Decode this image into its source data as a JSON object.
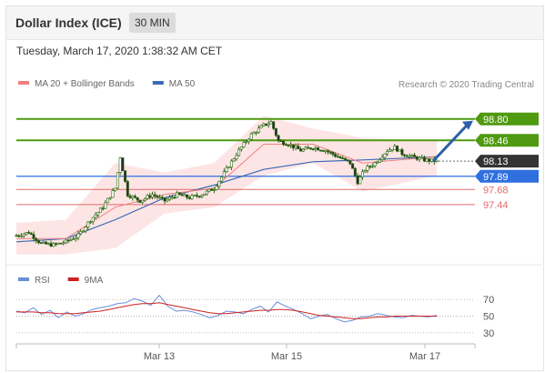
{
  "header": {
    "title": "Dollar Index (ICE)",
    "timeframe": "30 MIN"
  },
  "timestamp": "Tuesday, March 17, 2020 1:38:32 AM CET",
  "colors": {
    "ma20": "#f08080",
    "ma50": "#3a6ab4",
    "bollinger_fill": "#fde0e0",
    "support": "#e36b6b",
    "resistance": "#4f9a10",
    "pivot": "#2f6fe0",
    "current": "#333333",
    "rsi": "#6a8fd9",
    "rsi_ma": "#cc2222",
    "arrow": "#2d5fa8"
  },
  "chart_data": [
    {
      "type": "candlestick",
      "legend": [
        {
          "name": "MA 20 + Bollinger Bands",
          "color": "#f08080"
        },
        {
          "name": "MA 50",
          "color": "#3a6ab4"
        }
      ],
      "credit": "Research © 2020 Trading Central",
      "x_tick_labels": [
        "Mar 13",
        "Mar 15",
        "Mar 17"
      ],
      "ylim": [
        96.5,
        99.1
      ],
      "levels": [
        {
          "label": "98.80",
          "value": 98.8,
          "kind": "resistance"
        },
        {
          "label": "98.46",
          "value": 98.46,
          "kind": "resistance"
        },
        {
          "label": "98.13",
          "value": 98.13,
          "kind": "current"
        },
        {
          "label": "97.89",
          "value": 97.89,
          "kind": "pivot"
        },
        {
          "label": "97.68",
          "value": 97.68,
          "kind": "support"
        },
        {
          "label": "97.44",
          "value": 97.44,
          "kind": "support"
        }
      ],
      "close_path": [
        [
          0,
          96.95
        ],
        [
          5,
          97.0
        ],
        [
          10,
          96.82
        ],
        [
          15,
          96.8
        ],
        [
          20,
          96.85
        ],
        [
          25,
          96.95
        ],
        [
          30,
          97.2
        ],
        [
          35,
          97.4
        ],
        [
          40,
          97.7
        ],
        [
          42,
          98.2
        ],
        [
          45,
          97.6
        ],
        [
          50,
          97.5
        ],
        [
          55,
          97.6
        ],
        [
          60,
          97.5
        ],
        [
          65,
          97.6
        ],
        [
          70,
          97.55
        ],
        [
          75,
          97.6
        ],
        [
          80,
          97.7
        ],
        [
          85,
          98.0
        ],
        [
          90,
          98.3
        ],
        [
          95,
          98.55
        ],
        [
          100,
          98.7
        ],
        [
          103,
          98.75
        ],
        [
          106,
          98.45
        ],
        [
          110,
          98.4
        ],
        [
          115,
          98.3
        ],
        [
          120,
          98.35
        ],
        [
          125,
          98.3
        ],
        [
          130,
          98.2
        ],
        [
          135,
          98.1
        ],
        [
          138,
          97.8
        ],
        [
          141,
          98.0
        ],
        [
          145,
          98.1
        ],
        [
          150,
          98.3
        ],
        [
          153,
          98.35
        ],
        [
          156,
          98.25
        ],
        [
          160,
          98.2
        ],
        [
          165,
          98.15
        ],
        [
          170,
          98.13
        ]
      ],
      "ma50_path": [
        [
          0,
          96.85
        ],
        [
          20,
          96.9
        ],
        [
          40,
          97.2
        ],
        [
          60,
          97.55
        ],
        [
          80,
          97.75
        ],
        [
          100,
          98.0
        ],
        [
          120,
          98.12
        ],
        [
          140,
          98.15
        ],
        [
          170,
          98.2
        ]
      ],
      "ma20_path": [
        [
          0,
          96.9
        ],
        [
          20,
          96.9
        ],
        [
          40,
          97.4
        ],
        [
          60,
          97.6
        ],
        [
          80,
          97.7
        ],
        [
          100,
          98.4
        ],
        [
          120,
          98.4
        ],
        [
          140,
          98.1
        ],
        [
          170,
          98.2
        ]
      ],
      "bollinger_upper": [
        [
          0,
          97.15
        ],
        [
          20,
          97.2
        ],
        [
          40,
          98.1
        ],
        [
          60,
          97.95
        ],
        [
          80,
          98.1
        ],
        [
          100,
          98.85
        ],
        [
          120,
          98.65
        ],
        [
          140,
          98.5
        ],
        [
          170,
          98.45
        ]
      ],
      "bollinger_lower": [
        [
          0,
          96.65
        ],
        [
          20,
          96.65
        ],
        [
          40,
          96.75
        ],
        [
          60,
          97.3
        ],
        [
          80,
          97.4
        ],
        [
          100,
          97.9
        ],
        [
          120,
          98.1
        ],
        [
          140,
          97.65
        ],
        [
          170,
          97.9
        ]
      ]
    },
    {
      "type": "line",
      "legend": [
        {
          "name": "RSI",
          "color": "#6a8fd9"
        },
        {
          "name": "9MA",
          "color": "#cc2222"
        }
      ],
      "y_tick_labels": [
        "70",
        "50",
        "30"
      ],
      "ylim": [
        20,
        80
      ],
      "series": [
        {
          "name": "RSI",
          "values": [
            56,
            54,
            60,
            52,
            57,
            48,
            55,
            50,
            53,
            58,
            60,
            62,
            65,
            66,
            71,
            68,
            63,
            75,
            62,
            56,
            57,
            55,
            52,
            48,
            51,
            56,
            55,
            53,
            58,
            62,
            55,
            67,
            62,
            58,
            53,
            47,
            50,
            52,
            47,
            43,
            45,
            49,
            50,
            53,
            51,
            49,
            48,
            51,
            50,
            49,
            51
          ]
        },
        {
          "name": "9MA",
          "values": [
            55,
            55,
            55,
            54,
            54,
            53,
            53,
            53,
            54,
            55,
            56,
            58,
            60,
            62,
            64,
            65,
            65,
            66,
            64,
            62,
            60,
            58,
            56,
            54,
            53,
            53,
            54,
            55,
            56,
            57,
            57,
            58,
            58,
            57,
            55,
            53,
            51,
            50,
            49,
            48,
            47,
            47,
            48,
            49,
            49,
            50,
            50,
            50,
            50,
            50,
            50
          ]
        }
      ]
    }
  ]
}
